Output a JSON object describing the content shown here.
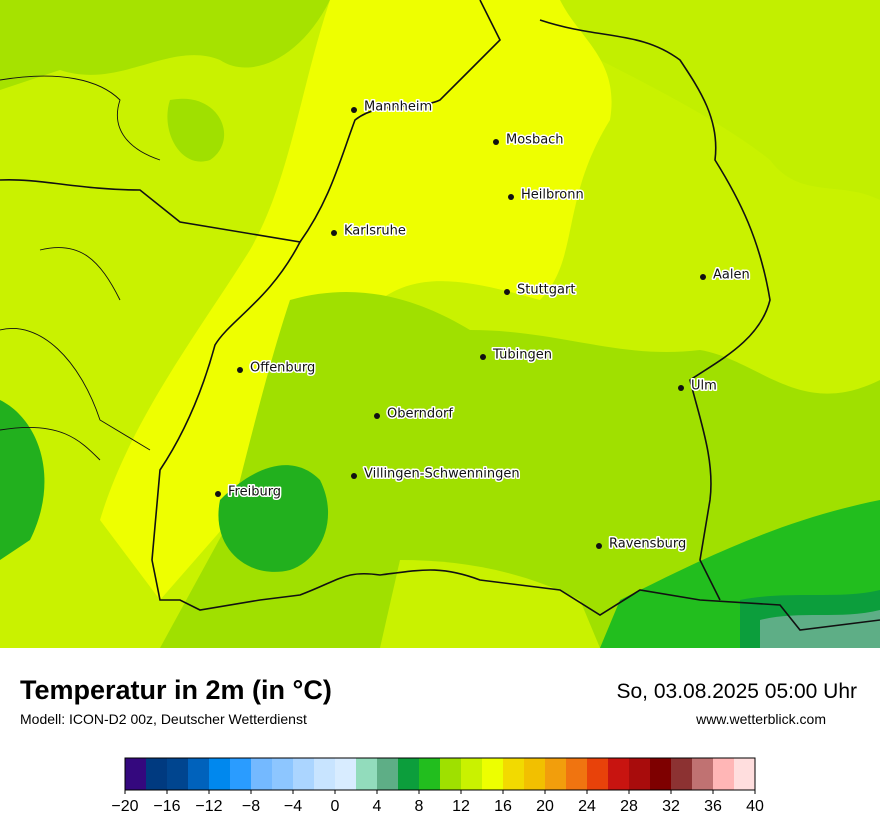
{
  "header": {
    "title": "Temperatur in 2m (in °C)",
    "subtitle": "Modell: ICON-D2 00z, Deutscher Wetterdienst",
    "date": "So, 03.08.2025 05:00 Uhr",
    "website": "www.wetterblick.com"
  },
  "cities": [
    {
      "label": "Mannheim"
    },
    {
      "label": "Mosbach"
    },
    {
      "label": "Heilbronn"
    },
    {
      "label": "Karlsruhe"
    },
    {
      "label": "Stuttgart"
    },
    {
      "label": "Aalen"
    },
    {
      "label": "Tübingen"
    },
    {
      "label": "Offenburg"
    },
    {
      "label": "Ulm"
    },
    {
      "label": "Oberndorf"
    },
    {
      "label": "Villingen-Schwenningen"
    },
    {
      "label": "Freiburg"
    },
    {
      "label": "Ravensburg"
    }
  ],
  "colorbar": {
    "lim": [
      -20,
      40
    ],
    "ticks": [
      {
        "value": -20,
        "label": "−20"
      },
      {
        "value": -16,
        "label": "−16"
      },
      {
        "value": -12,
        "label": "−12"
      },
      {
        "value": -8,
        "label": "−8"
      },
      {
        "value": -4,
        "label": "−4"
      },
      0,
      4,
      8,
      12,
      16,
      20,
      24,
      28,
      32,
      36,
      40
    ],
    "colors": [
      "#34087e",
      "#003a80",
      "#00458f",
      "#0062bc",
      "#0088ee",
      "#2a9cff",
      "#74b9ff",
      "#8dc6ff",
      "#abd5ff",
      "#c8e4ff",
      "#d8ecff",
      "#92dcbc",
      "#5eae86",
      "#0c9e3c",
      "#22be1e",
      "#9fe000",
      "#c9f200",
      "#edff00",
      "#f2da00",
      "#f2c000",
      "#f29e0c",
      "#f07410",
      "#e8420a",
      "#c81410",
      "#a80c0c",
      "#7e0000",
      "#8c3232",
      "#c07272",
      "#ffb6b6",
      "#ffdede"
    ]
  }
}
